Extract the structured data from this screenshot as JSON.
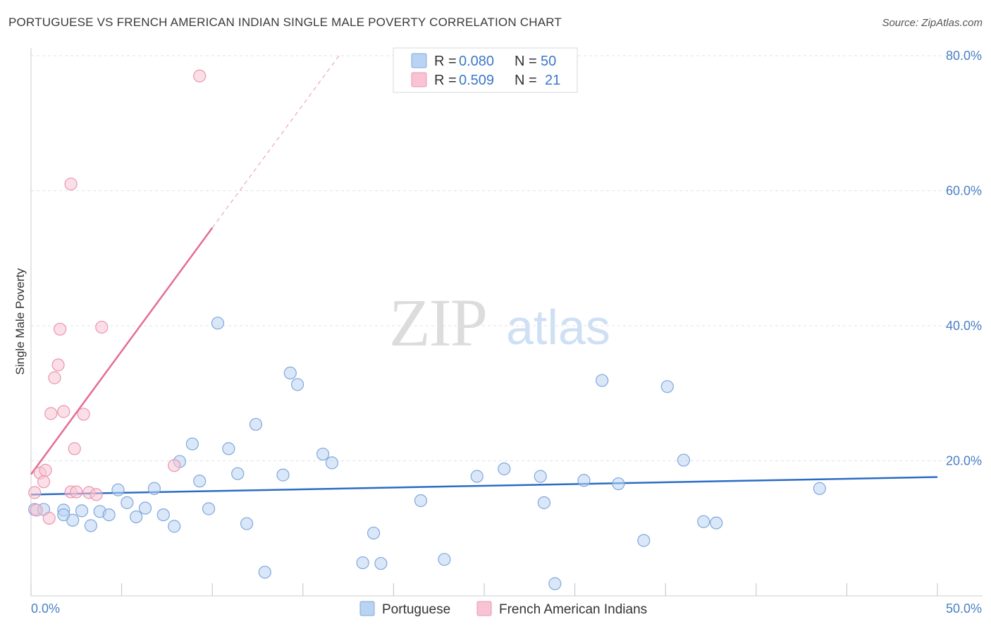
{
  "header": {
    "title": "PORTUGUESE VS FRENCH AMERICAN INDIAN SINGLE MALE POVERTY CORRELATION CHART",
    "source": "Source: ZipAtlas.com"
  },
  "watermark": {
    "zip": "ZIP",
    "atlas": "atlas"
  },
  "colors": {
    "portuguese_fill": "#b9d3f2",
    "portuguese_stroke": "#7fa8dc",
    "portuguese_line": "#2b6cc4",
    "french_fill": "#f8c4d3",
    "french_stroke": "#eb95b1",
    "french_line": "#e56c93",
    "axis_tick_text": "#4a7fc4",
    "grid": "#dde3ea"
  },
  "legend": {
    "rows": [
      {
        "r_label": "R = ",
        "r_value": "0.080",
        "n_label": "N = ",
        "n_value": "50"
      },
      {
        "r_label": "R = ",
        "r_value": "0.509",
        "n_label": "N = ",
        "n_value": "21"
      }
    ]
  },
  "chart_data": {
    "type": "scatter",
    "title": "PORTUGUESE VS FRENCH AMERICAN INDIAN SINGLE MALE POVERTY CORRELATION CHART",
    "xlabel": "",
    "ylabel": "Single Male Poverty",
    "xlim": [
      0,
      50
    ],
    "ylim": [
      0,
      80
    ],
    "x_tick_labels": [
      "0.0%",
      "50.0%"
    ],
    "y_tick_labels": [
      {
        "value": 20,
        "label": "20.0%"
      },
      {
        "value": 40,
        "label": "40.0%"
      },
      {
        "value": 60,
        "label": "60.0%"
      },
      {
        "value": 80,
        "label": "80.0%"
      }
    ],
    "grid": true,
    "legend_position": "top-center",
    "series": [
      {
        "name": "Portuguese",
        "r": 0.08,
        "n": 50,
        "trend": {
          "x": [
            0,
            50
          ],
          "y": [
            15.0,
            17.6
          ]
        },
        "points": [
          [
            0.2,
            12.8
          ],
          [
            0.7,
            12.8
          ],
          [
            1.8,
            12.7
          ],
          [
            1.8,
            12.0
          ],
          [
            2.3,
            11.2
          ],
          [
            2.8,
            12.6
          ],
          [
            3.3,
            10.4
          ],
          [
            3.8,
            12.5
          ],
          [
            4.3,
            12.0
          ],
          [
            4.8,
            15.7
          ],
          [
            5.3,
            13.8
          ],
          [
            5.8,
            11.7
          ],
          [
            6.3,
            13.0
          ],
          [
            6.8,
            15.9
          ],
          [
            7.3,
            12.0
          ],
          [
            7.9,
            10.3
          ],
          [
            8.2,
            19.9
          ],
          [
            8.9,
            22.5
          ],
          [
            9.3,
            17.0
          ],
          [
            9.8,
            12.9
          ],
          [
            10.3,
            40.4
          ],
          [
            10.9,
            21.8
          ],
          [
            11.4,
            18.1
          ],
          [
            11.9,
            10.7
          ],
          [
            12.4,
            25.4
          ],
          [
            12.9,
            3.5
          ],
          [
            13.9,
            17.9
          ],
          [
            14.3,
            33.0
          ],
          [
            14.7,
            31.3
          ],
          [
            16.1,
            21.0
          ],
          [
            16.6,
            19.7
          ],
          [
            18.3,
            4.9
          ],
          [
            18.9,
            9.3
          ],
          [
            19.3,
            4.8
          ],
          [
            21.5,
            14.1
          ],
          [
            22.8,
            5.4
          ],
          [
            24.6,
            17.7
          ],
          [
            26.1,
            18.8
          ],
          [
            28.1,
            17.7
          ],
          [
            28.3,
            13.8
          ],
          [
            28.9,
            1.8
          ],
          [
            30.5,
            17.1
          ],
          [
            31.5,
            31.9
          ],
          [
            32.4,
            16.6
          ],
          [
            33.8,
            8.2
          ],
          [
            35.1,
            31.0
          ],
          [
            36.0,
            20.1
          ],
          [
            37.1,
            11.0
          ],
          [
            37.8,
            10.8
          ],
          [
            43.5,
            15.9
          ]
        ]
      },
      {
        "name": "French American Indians",
        "r": 0.509,
        "n": 21,
        "trend": {
          "x": [
            0,
            10
          ],
          "y": [
            18.0,
            54.5
          ]
        },
        "trend_dashed": {
          "x": [
            10,
            17.1
          ],
          "y": [
            54.5,
            80.4
          ]
        },
        "points": [
          [
            0.2,
            15.3
          ],
          [
            0.3,
            12.7
          ],
          [
            0.5,
            18.2
          ],
          [
            0.7,
            16.9
          ],
          [
            0.8,
            18.6
          ],
          [
            1.0,
            11.5
          ],
          [
            1.1,
            27.0
          ],
          [
            1.3,
            32.3
          ],
          [
            1.5,
            34.2
          ],
          [
            1.6,
            39.5
          ],
          [
            1.8,
            27.3
          ],
          [
            2.2,
            61.0
          ],
          [
            2.2,
            15.4
          ],
          [
            2.4,
            21.8
          ],
          [
            2.5,
            15.4
          ],
          [
            2.9,
            26.9
          ],
          [
            3.2,
            15.3
          ],
          [
            3.6,
            15.0
          ],
          [
            3.9,
            39.8
          ],
          [
            7.9,
            19.3
          ],
          [
            9.3,
            77.0
          ]
        ]
      }
    ]
  },
  "bottom_legend": {
    "items": [
      {
        "label": "Portuguese"
      },
      {
        "label": "French American Indians"
      }
    ]
  }
}
